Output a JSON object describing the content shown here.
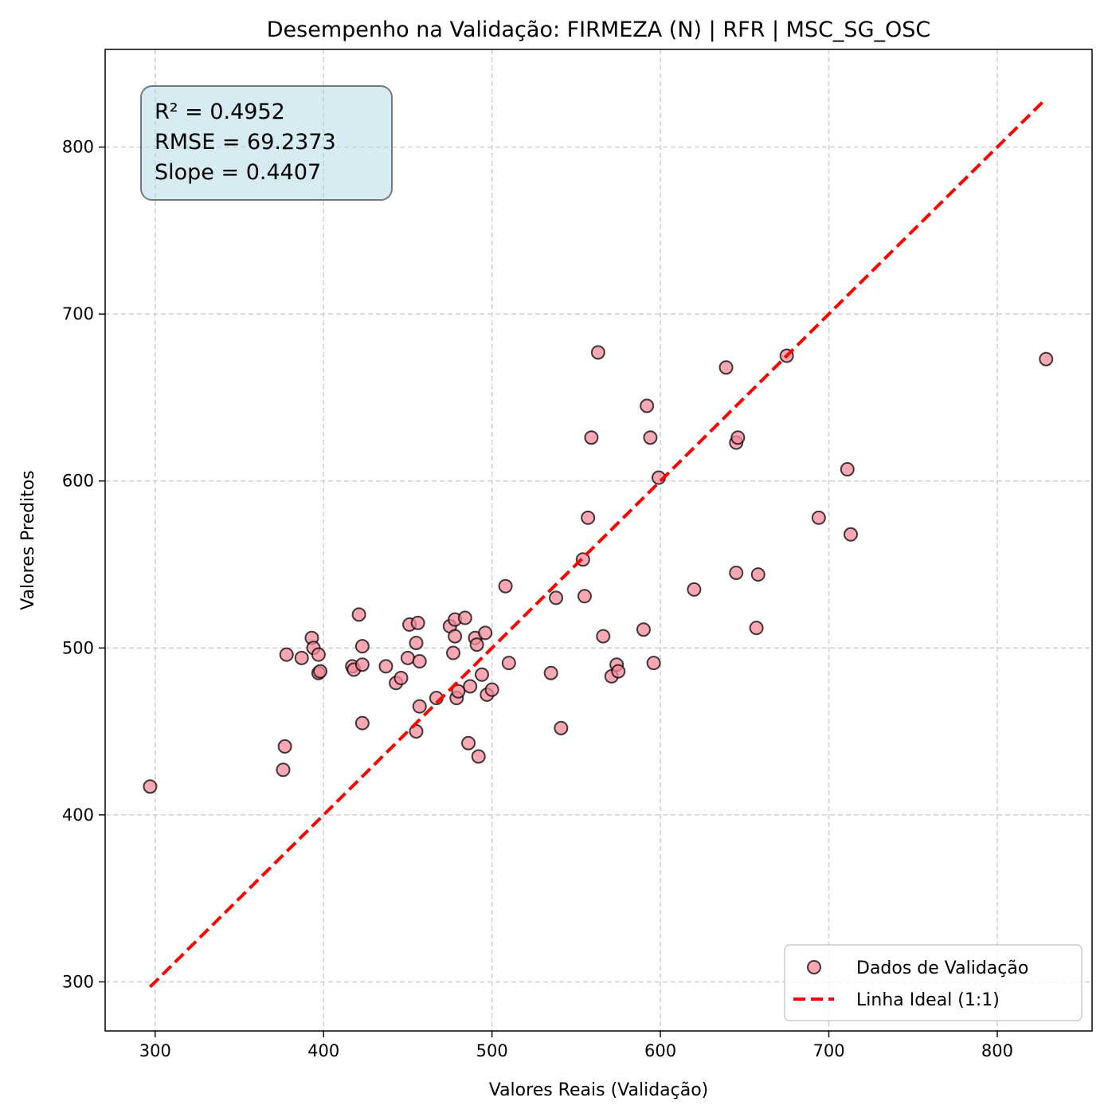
{
  "chart_data": {
    "type": "scatter",
    "title": "Desempenho na Validação: FIRMEZA (N) | RFR | MSC_SG_OSC",
    "xlabel": "Valores Reais (Validação)",
    "ylabel": "Valores Preditos",
    "xlim": [
      270.3,
      856.3
    ],
    "ylim": [
      270.6,
      858.5
    ],
    "xticks": [
      300,
      400,
      500,
      600,
      700,
      800
    ],
    "yticks": [
      300,
      400,
      500,
      600,
      700,
      800
    ],
    "grid": true,
    "legend_position": "lower-right",
    "stats": [
      "R² = 0.4952",
      "RMSE = 69.2373",
      "Slope = 0.4407"
    ],
    "series": [
      {
        "name": "Dados de Validação",
        "kind": "scatter",
        "color": "#f58a9a",
        "edgecolor": "#000000",
        "x": [
          297,
          376,
          377,
          378,
          387,
          393,
          394,
          397,
          397,
          398,
          417,
          418,
          421,
          423,
          423,
          423,
          437,
          443,
          446,
          450,
          451,
          455,
          455,
          456,
          457,
          457,
          467,
          475,
          477,
          478,
          478,
          479,
          480,
          484,
          486,
          487,
          490,
          491,
          492,
          494,
          496,
          497,
          500,
          508,
          510,
          535,
          538,
          541,
          554,
          555,
          557,
          559,
          563,
          566,
          571,
          574,
          575,
          590,
          592,
          594,
          596,
          599,
          620,
          639,
          645,
          645,
          646,
          657,
          658,
          675,
          694,
          711,
          713,
          829
        ],
        "y": [
          417,
          427,
          441,
          496,
          494,
          506,
          500,
          485,
          496,
          486,
          489,
          487,
          520,
          501,
          490,
          455,
          489,
          479,
          482,
          494,
          514,
          503,
          450,
          515,
          492,
          465,
          470,
          513,
          497,
          517,
          507,
          470,
          474,
          518,
          443,
          477,
          506,
          502,
          435,
          484,
          509,
          472,
          475,
          537,
          491,
          485,
          530,
          452,
          553,
          531,
          578,
          626,
          677,
          507,
          483,
          490,
          486,
          511,
          645,
          626,
          491,
          602,
          535,
          668,
          623,
          545,
          626,
          512,
          544,
          675,
          578,
          607,
          568,
          673
        ]
      },
      {
        "name": "Linha Ideal (1:1)",
        "kind": "line",
        "color": "#ff0000",
        "dash": "dashed",
        "x": [
          297,
          829
        ],
        "y": [
          297,
          829
        ]
      }
    ]
  }
}
